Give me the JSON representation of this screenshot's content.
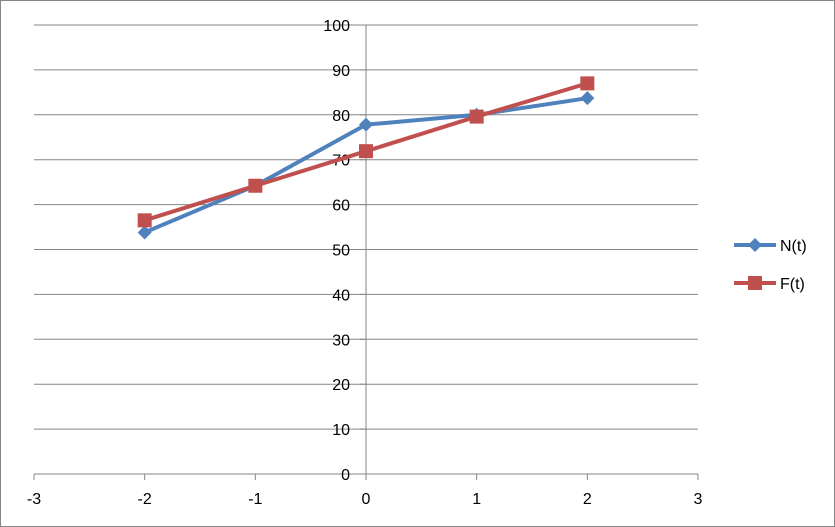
{
  "chart_data": {
    "type": "line",
    "title": "",
    "xlabel": "",
    "ylabel": "",
    "xlim": [
      -3,
      3
    ],
    "ylim": [
      0,
      100
    ],
    "x_ticks": [
      -3,
      -2,
      -1,
      0,
      1,
      2,
      3
    ],
    "y_ticks": [
      0,
      10,
      20,
      30,
      40,
      50,
      60,
      70,
      80,
      90,
      100
    ],
    "grid": "horizontal",
    "legend_position": "right",
    "series": [
      {
        "name": "N(t)",
        "color": "#4F81BD",
        "marker": "diamond",
        "x": [
          -2,
          -1,
          0,
          1,
          2
        ],
        "y": [
          53.8,
          64.2,
          77.8,
          80.0,
          83.7
        ]
      },
      {
        "name": "F(t)",
        "color": "#C0504D",
        "marker": "square",
        "x": [
          -2,
          -1,
          0,
          1,
          2
        ],
        "y": [
          56.5,
          64.2,
          71.9,
          79.6,
          87.0
        ]
      }
    ]
  }
}
